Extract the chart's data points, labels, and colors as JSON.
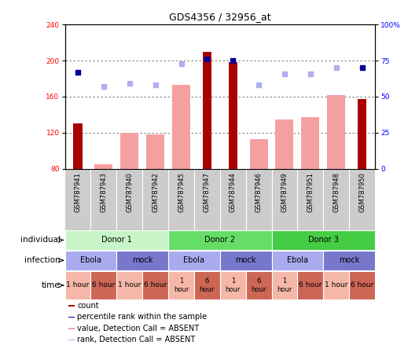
{
  "title": "GDS4356 / 32956_at",
  "samples": [
    "GSM787941",
    "GSM787943",
    "GSM787940",
    "GSM787942",
    "GSM787945",
    "GSM787947",
    "GSM787944",
    "GSM787946",
    "GSM787949",
    "GSM787951",
    "GSM787948",
    "GSM787950"
  ],
  "count_values": [
    130,
    null,
    null,
    null,
    null,
    210,
    198,
    null,
    null,
    null,
    null,
    157
  ],
  "count_absent_values": [
    null,
    85,
    120,
    118,
    173,
    null,
    null,
    113,
    135,
    137,
    162,
    null
  ],
  "rank_present": [
    67,
    null,
    null,
    null,
    null,
    76,
    75,
    null,
    null,
    null,
    null,
    70
  ],
  "rank_absent": [
    null,
    57,
    59,
    58,
    73,
    null,
    null,
    58,
    66,
    66,
    70,
    null
  ],
  "ylim": [
    80,
    240
  ],
  "yticks_left": [
    80,
    120,
    160,
    200,
    240
  ],
  "yticks_right": [
    0,
    25,
    50,
    75,
    100
  ],
  "right_ylim": [
    0,
    100
  ],
  "donor_groups": [
    {
      "label": "Donor 1",
      "start": 0,
      "end": 4,
      "color": "#c8f5c8"
    },
    {
      "label": "Donor 2",
      "start": 4,
      "end": 8,
      "color": "#66dd66"
    },
    {
      "label": "Donor 3",
      "start": 8,
      "end": 12,
      "color": "#44cc44"
    }
  ],
  "infection_groups": [
    {
      "label": "Ebola",
      "start": 0,
      "end": 2,
      "color": "#aaaaee"
    },
    {
      "label": "mock",
      "start": 2,
      "end": 4,
      "color": "#7777cc"
    },
    {
      "label": "Ebola",
      "start": 4,
      "end": 6,
      "color": "#aaaaee"
    },
    {
      "label": "mock",
      "start": 6,
      "end": 8,
      "color": "#7777cc"
    },
    {
      "label": "Ebola",
      "start": 8,
      "end": 10,
      "color": "#aaaaee"
    },
    {
      "label": "mock",
      "start": 10,
      "end": 12,
      "color": "#7777cc"
    }
  ],
  "time_groups": [
    {
      "label": "1 hour",
      "start": 0,
      "end": 1,
      "color": "#f5b8a8",
      "two_line": false
    },
    {
      "label": "6 hour",
      "start": 1,
      "end": 2,
      "color": "#cc6655",
      "two_line": false
    },
    {
      "label": "1 hour",
      "start": 2,
      "end": 3,
      "color": "#f5b8a8",
      "two_line": false
    },
    {
      "label": "6 hour",
      "start": 3,
      "end": 4,
      "color": "#cc6655",
      "two_line": false
    },
    {
      "label": "1\nhour",
      "start": 4,
      "end": 5,
      "color": "#f5b8a8",
      "two_line": true
    },
    {
      "label": "6\nhour",
      "start": 5,
      "end": 6,
      "color": "#cc6655",
      "two_line": true
    },
    {
      "label": "1\nhour",
      "start": 6,
      "end": 7,
      "color": "#f5b8a8",
      "two_line": true
    },
    {
      "label": "6\nhour",
      "start": 7,
      "end": 8,
      "color": "#cc6655",
      "two_line": true
    },
    {
      "label": "1\nhour",
      "start": 8,
      "end": 9,
      "color": "#f5b8a8",
      "two_line": true
    },
    {
      "label": "6 hour",
      "start": 9,
      "end": 10,
      "color": "#cc6655",
      "two_line": false
    },
    {
      "label": "1 hour",
      "start": 10,
      "end": 11,
      "color": "#f5b8a8",
      "two_line": false
    },
    {
      "label": "6 hour",
      "start": 11,
      "end": 12,
      "color": "#cc6655",
      "two_line": false
    }
  ],
  "count_color": "#aa0000",
  "count_absent_color": "#f5a0a0",
  "rank_present_color": "#000099",
  "rank_absent_color": "#b0b0ee",
  "grid_color": "#666666",
  "bg_color": "#ffffff",
  "sample_bg_color": "#cccccc",
  "title_fontsize": 9,
  "tick_fontsize": 6.5,
  "sample_fontsize": 6,
  "row_label_fontsize": 7.5,
  "annot_fontsize": 7,
  "legend_fontsize": 7
}
